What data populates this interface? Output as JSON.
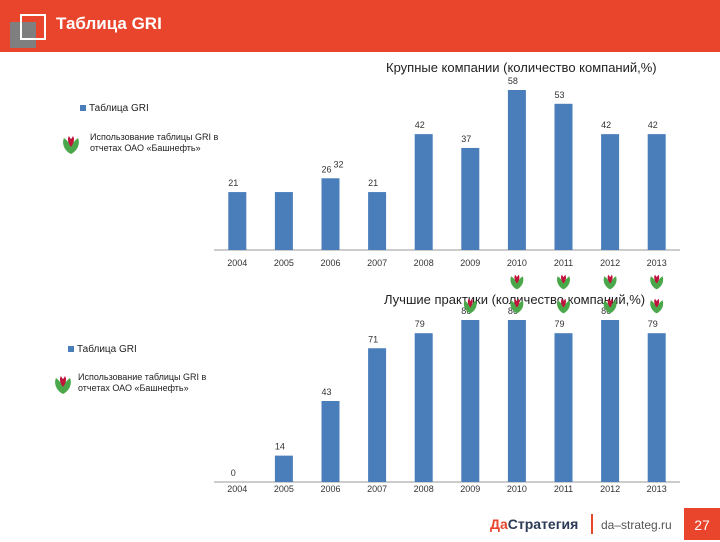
{
  "header": {
    "title": "Таблица GRI"
  },
  "legend": {
    "series_label": "Таблица GRI",
    "icon_label": "Использование таблицы GRI в отчетах ОАО «Башнефть»"
  },
  "footer": {
    "logo_part1": "Да",
    "logo_part2": "Стратегия",
    "url": "da–strateg.ru",
    "page": "27"
  },
  "colors": {
    "accent": "#e8452c",
    "bar": "#4a7ebb",
    "icon_red": "#c0143c",
    "icon_green": "#4aa84a"
  },
  "chart_data": [
    {
      "type": "bar",
      "title": "Крупные компании (количество компаний,%)",
      "categories": [
        "2004",
        "2005",
        "2006",
        "2007",
        "2008",
        "2009",
        "2010",
        "2011",
        "2012",
        "2013"
      ],
      "series": [
        {
          "name": "Таблица GRI",
          "values": [
            21,
            21,
            26,
            21,
            42,
            37,
            58,
            53,
            42,
            42
          ],
          "labels": [
            "21",
            "",
            "26",
            "21",
            "42",
            "37",
            "58",
            "53",
            "42",
            "42"
          ]
        }
      ],
      "extra_labels": [
        "32"
      ],
      "gri_usage_years": [
        "2010",
        "2011",
        "2012",
        "2013"
      ]
    },
    {
      "type": "bar",
      "title": "Лучшие практики (количество компаний,%)",
      "categories": [
        "2004",
        "2005",
        "2006",
        "2007",
        "2008",
        "2009",
        "2010",
        "2011",
        "2012",
        "2013"
      ],
      "series": [
        {
          "name": "Таблица GRI",
          "values": [
            0,
            14,
            43,
            71,
            79,
            86,
            86,
            79,
            86,
            79
          ],
          "labels": [
            "0",
            "14",
            "43",
            "71",
            "79",
            "86",
            "86",
            "79",
            "86",
            "79"
          ]
        }
      ],
      "gri_usage_years": [
        "2009",
        "2010",
        "2011",
        "2012",
        "2013"
      ]
    }
  ]
}
